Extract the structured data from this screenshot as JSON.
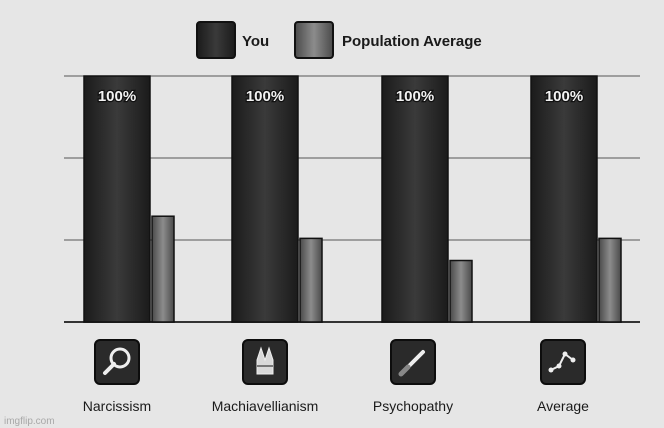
{
  "chart_data": {
    "type": "bar",
    "categories": [
      "Narcissism",
      "Machiavellianism",
      "Psychopathy",
      "Average"
    ],
    "series": [
      {
        "name": "You",
        "values": [
          100,
          100,
          100,
          100
        ],
        "color": "#2c2c2c"
      },
      {
        "name": "Population Average",
        "values": [
          43,
          34,
          25,
          34
        ],
        "color": "#6e6e6e"
      }
    ],
    "data_labels": [
      "100%",
      "100%",
      "100%",
      "100%"
    ],
    "ylim": [
      0,
      100
    ],
    "grid": true,
    "legend_position": "top-center"
  },
  "icons": [
    "magnifying-glass-icon",
    "crossed-fingers-icon",
    "knife-icon",
    "chart-network-icon"
  ],
  "watermark": "imgflip.com"
}
